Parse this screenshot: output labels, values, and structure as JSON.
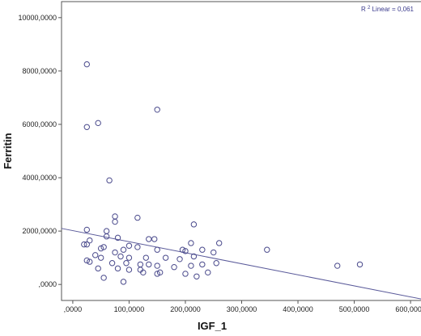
{
  "chart_data": {
    "type": "scatter",
    "title": "",
    "xlabel": "IGF_1",
    "ylabel": "Ferritin",
    "xlim": [
      -20,
      620
    ],
    "ylim": [
      -600,
      10600
    ],
    "x_ticks": [
      0,
      100,
      200,
      300,
      400,
      500,
      600
    ],
    "x_tick_labels": [
      ",0000",
      "100,0000",
      "200,0000",
      "300,0000",
      "400,0000",
      "500,0000",
      "600,0000"
    ],
    "y_ticks": [
      0,
      2000,
      4000,
      6000,
      8000,
      10000
    ],
    "y_tick_labels": [
      ",0000",
      "2000,0000",
      "4000,0000",
      "6000,0000",
      "8000,0000",
      "10000,0000"
    ],
    "grid": false,
    "annotation": {
      "r2_prefix": "R",
      "r2_sup": "2",
      "r2_text": " Linear = 0,061"
    },
    "fit_line": {
      "x0": -20,
      "y0": 2100,
      "x1": 620,
      "y1": -550
    },
    "points": [
      {
        "x": 25,
        "y": 8250
      },
      {
        "x": 25,
        "y": 5900
      },
      {
        "x": 45,
        "y": 6050
      },
      {
        "x": 150,
        "y": 6550
      },
      {
        "x": 65,
        "y": 3900
      },
      {
        "x": 75,
        "y": 2550
      },
      {
        "x": 75,
        "y": 2350
      },
      {
        "x": 115,
        "y": 2500
      },
      {
        "x": 215,
        "y": 2250
      },
      {
        "x": 25,
        "y": 2050
      },
      {
        "x": 60,
        "y": 2000
      },
      {
        "x": 60,
        "y": 1800
      },
      {
        "x": 80,
        "y": 1750
      },
      {
        "x": 135,
        "y": 1700
      },
      {
        "x": 145,
        "y": 1700
      },
      {
        "x": 30,
        "y": 1650
      },
      {
        "x": 25,
        "y": 1500
      },
      {
        "x": 20,
        "y": 1500
      },
      {
        "x": 100,
        "y": 1450
      },
      {
        "x": 210,
        "y": 1550
      },
      {
        "x": 260,
        "y": 1550
      },
      {
        "x": 115,
        "y": 1400
      },
      {
        "x": 55,
        "y": 1400
      },
      {
        "x": 50,
        "y": 1350
      },
      {
        "x": 90,
        "y": 1300
      },
      {
        "x": 150,
        "y": 1300
      },
      {
        "x": 195,
        "y": 1300
      },
      {
        "x": 200,
        "y": 1250
      },
      {
        "x": 230,
        "y": 1300
      },
      {
        "x": 250,
        "y": 1200
      },
      {
        "x": 345,
        "y": 1300
      },
      {
        "x": 75,
        "y": 1200
      },
      {
        "x": 40,
        "y": 1100
      },
      {
        "x": 85,
        "y": 1050
      },
      {
        "x": 100,
        "y": 1000
      },
      {
        "x": 130,
        "y": 1000
      },
      {
        "x": 165,
        "y": 1000
      },
      {
        "x": 190,
        "y": 950
      },
      {
        "x": 215,
        "y": 1050
      },
      {
        "x": 25,
        "y": 900
      },
      {
        "x": 30,
        "y": 850
      },
      {
        "x": 50,
        "y": 1000
      },
      {
        "x": 70,
        "y": 800
      },
      {
        "x": 95,
        "y": 800
      },
      {
        "x": 120,
        "y": 750
      },
      {
        "x": 135,
        "y": 750
      },
      {
        "x": 150,
        "y": 700
      },
      {
        "x": 180,
        "y": 650
      },
      {
        "x": 210,
        "y": 700
      },
      {
        "x": 230,
        "y": 750
      },
      {
        "x": 255,
        "y": 800
      },
      {
        "x": 470,
        "y": 700
      },
      {
        "x": 510,
        "y": 750
      },
      {
        "x": 45,
        "y": 600
      },
      {
        "x": 120,
        "y": 550
      },
      {
        "x": 125,
        "y": 450
      },
      {
        "x": 150,
        "y": 400
      },
      {
        "x": 155,
        "y": 450
      },
      {
        "x": 200,
        "y": 400
      },
      {
        "x": 240,
        "y": 450
      },
      {
        "x": 220,
        "y": 300
      },
      {
        "x": 80,
        "y": 600
      },
      {
        "x": 100,
        "y": 550
      },
      {
        "x": 55,
        "y": 250
      },
      {
        "x": 90,
        "y": 100
      }
    ]
  },
  "colors": {
    "marker": "#4a4a8c",
    "fit_line": "#5a5a9a",
    "frame": "#555555"
  }
}
